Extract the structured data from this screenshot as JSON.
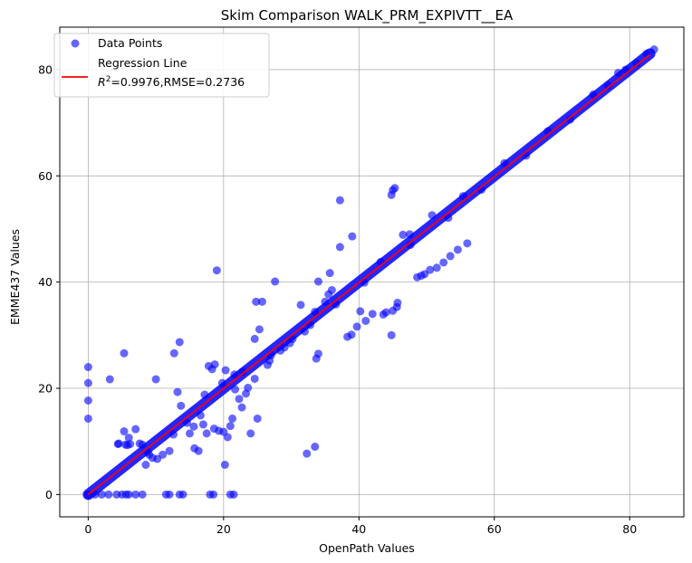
{
  "chart_data": {
    "type": "scatter",
    "title": "Skim Comparison WALK_PRM_EXPIVTT__EA",
    "xlabel": "OpenPath Values",
    "ylabel": "EMME437 Values",
    "xlim": [
      -4.2,
      88
    ],
    "ylim": [
      -4.2,
      88
    ],
    "xticks": [
      0,
      20,
      40,
      60,
      80
    ],
    "yticks": [
      0,
      20,
      40,
      60,
      80
    ],
    "xtick_labels": [
      "0",
      "20",
      "40",
      "60",
      "80"
    ],
    "ytick_labels": [
      "0",
      "20",
      "40",
      "60",
      "80"
    ],
    "grid": true,
    "legend_position": "top-left",
    "legend": {
      "points_label": "Data Points",
      "line_label": "Regression Line",
      "stats_label": "=0.9976,RMSE=0.2736",
      "r2_symbol": "R",
      "r2_sup": "2"
    },
    "colors": {
      "points": "#0000ff",
      "line": "#ff0000",
      "grid": "#b0b0b0"
    },
    "regression": {
      "slope": 0.9976,
      "intercept": 0.0,
      "x_range": [
        0,
        83
      ]
    },
    "diagonal_range": [
      0,
      83
    ],
    "series": [
      {
        "name": "Data Points",
        "points": [
          [
            0,
            24
          ],
          [
            0,
            21
          ],
          [
            0,
            17.7
          ],
          [
            0,
            14.3
          ],
          [
            3.2,
            21.7
          ],
          [
            5.3,
            26.6
          ],
          [
            5.3,
            11.9
          ],
          [
            6.0,
            10.7
          ],
          [
            4.5,
            9.6
          ],
          [
            5.5,
            9.4
          ],
          [
            6.2,
            9.5
          ],
          [
            7.0,
            12.3
          ],
          [
            8.0,
            9.4
          ],
          [
            8.5,
            5.6
          ],
          [
            9.0,
            7.5
          ],
          [
            9.5,
            6.9
          ],
          [
            10.2,
            6.7
          ],
          [
            10.0,
            21.7
          ],
          [
            11.0,
            7.5
          ],
          [
            12.0,
            8.2
          ],
          [
            12.7,
            26.6
          ],
          [
            13.5,
            28.7
          ],
          [
            13.2,
            19.3
          ],
          [
            13.7,
            16.7
          ],
          [
            14.6,
            13.5
          ],
          [
            15.0,
            11.5
          ],
          [
            15.7,
            8.7
          ],
          [
            16.3,
            8.2
          ],
          [
            17.0,
            13.2
          ],
          [
            17.5,
            11.5
          ],
          [
            17.8,
            24.2
          ],
          [
            18.3,
            23.6
          ],
          [
            18.7,
            24.5
          ],
          [
            19.0,
            42.2
          ],
          [
            19.3,
            12.0
          ],
          [
            20.0,
            11.8
          ],
          [
            20.3,
            23.4
          ],
          [
            20.2,
            5.6
          ],
          [
            20.6,
            10.8
          ],
          [
            21.0,
            12.9
          ],
          [
            21.3,
            14.3
          ],
          [
            21.7,
            19.8
          ],
          [
            22.3,
            18.0
          ],
          [
            22.7,
            16.4
          ],
          [
            23.3,
            19.0
          ],
          [
            24.0,
            11.5
          ],
          [
            24.6,
            21.8
          ],
          [
            25.0,
            14.3
          ],
          [
            24.6,
            29.3
          ],
          [
            24.8,
            36.3
          ],
          [
            25.3,
            31.1
          ],
          [
            25.7,
            36.3
          ],
          [
            26.5,
            24.4
          ],
          [
            27.6,
            40.1
          ],
          [
            27.0,
            26.2
          ],
          [
            29.0,
            27.7
          ],
          [
            29.8,
            28.5
          ],
          [
            31.4,
            35.7
          ],
          [
            32.0,
            30.7
          ],
          [
            32.3,
            7.7
          ],
          [
            33.5,
            9.0
          ],
          [
            33.7,
            25.6
          ],
          [
            34.0,
            26.5
          ],
          [
            34.0,
            40.1
          ],
          [
            33.5,
            34.4
          ],
          [
            35.0,
            36.3
          ],
          [
            35.5,
            37.7
          ],
          [
            36.0,
            38.5
          ],
          [
            35.7,
            41.7
          ],
          [
            37.2,
            55.4
          ],
          [
            37.2,
            46.6
          ],
          [
            38.3,
            29.7
          ],
          [
            38.9,
            30.1
          ],
          [
            39.0,
            48.6
          ],
          [
            39.7,
            31.6
          ],
          [
            40.2,
            34.5
          ],
          [
            41.0,
            32.7
          ],
          [
            42.0,
            34.0
          ],
          [
            43.6,
            33.9
          ],
          [
            44.0,
            34.3
          ],
          [
            45.0,
            34.6
          ],
          [
            44.8,
            30.0
          ],
          [
            45.6,
            35.3
          ],
          [
            45.7,
            36.1
          ],
          [
            44.8,
            56.4
          ],
          [
            45.0,
            57.3
          ],
          [
            45.3,
            57.7
          ],
          [
            46.5,
            48.9
          ],
          [
            47.5,
            49.0
          ],
          [
            48.6,
            40.9
          ],
          [
            49.2,
            41.2
          ],
          [
            49.7,
            41.5
          ],
          [
            50.5,
            42.3
          ],
          [
            51.5,
            42.7
          ],
          [
            52.5,
            43.7
          ],
          [
            53.5,
            44.9
          ],
          [
            54.6,
            46.1
          ],
          [
            56.0,
            47.3
          ],
          [
            0,
            0
          ],
          [
            1.0,
            0
          ],
          [
            2.0,
            0
          ],
          [
            3.0,
            0
          ],
          [
            4.2,
            0
          ],
          [
            5.0,
            0
          ],
          [
            5.6,
            0
          ],
          [
            6.0,
            0
          ],
          [
            7.0,
            0
          ],
          [
            8.0,
            0
          ],
          [
            11.5,
            0
          ],
          [
            12.0,
            0
          ],
          [
            13.5,
            0
          ],
          [
            14.0,
            0
          ],
          [
            18.0,
            0
          ],
          [
            18.5,
            0
          ],
          [
            21.0,
            0
          ],
          [
            21.5,
            0
          ],
          [
            4.4,
            9.5
          ],
          [
            5.8,
            9.3
          ],
          [
            7.6,
            9.6
          ],
          [
            8.8,
            8.0
          ],
          [
            12.6,
            11.3
          ],
          [
            15.6,
            12.8
          ],
          [
            16.6,
            14.9
          ],
          [
            17.2,
            18.8
          ],
          [
            18.6,
            12.4
          ],
          [
            19.8,
            21.0
          ],
          [
            21.6,
            22.6
          ],
          [
            22.8,
            23.1
          ],
          [
            23.6,
            20.1
          ],
          [
            26.8,
            25.2
          ],
          [
            28.4,
            27.1
          ],
          [
            30.2,
            29.3
          ],
          [
            32.8,
            31.9
          ],
          [
            36.6,
            35.8
          ],
          [
            40.8,
            39.9
          ],
          [
            43.2,
            43.8
          ],
          [
            47.6,
            47.0
          ],
          [
            50.8,
            52.6
          ],
          [
            53.2,
            52.1
          ],
          [
            55.4,
            56.2
          ],
          [
            58.1,
            57.4
          ],
          [
            61.5,
            62.4
          ],
          [
            64.7,
            63.8
          ],
          [
            67.9,
            68.4
          ],
          [
            71.2,
            70.6
          ],
          [
            74.6,
            75.3
          ],
          [
            76.8,
            77.0
          ],
          [
            78.3,
            79.4
          ],
          [
            79.4,
            80.0
          ],
          [
            81.0,
            81.2
          ],
          [
            82.5,
            83.0
          ],
          [
            83.6,
            83.8
          ]
        ]
      }
    ]
  }
}
